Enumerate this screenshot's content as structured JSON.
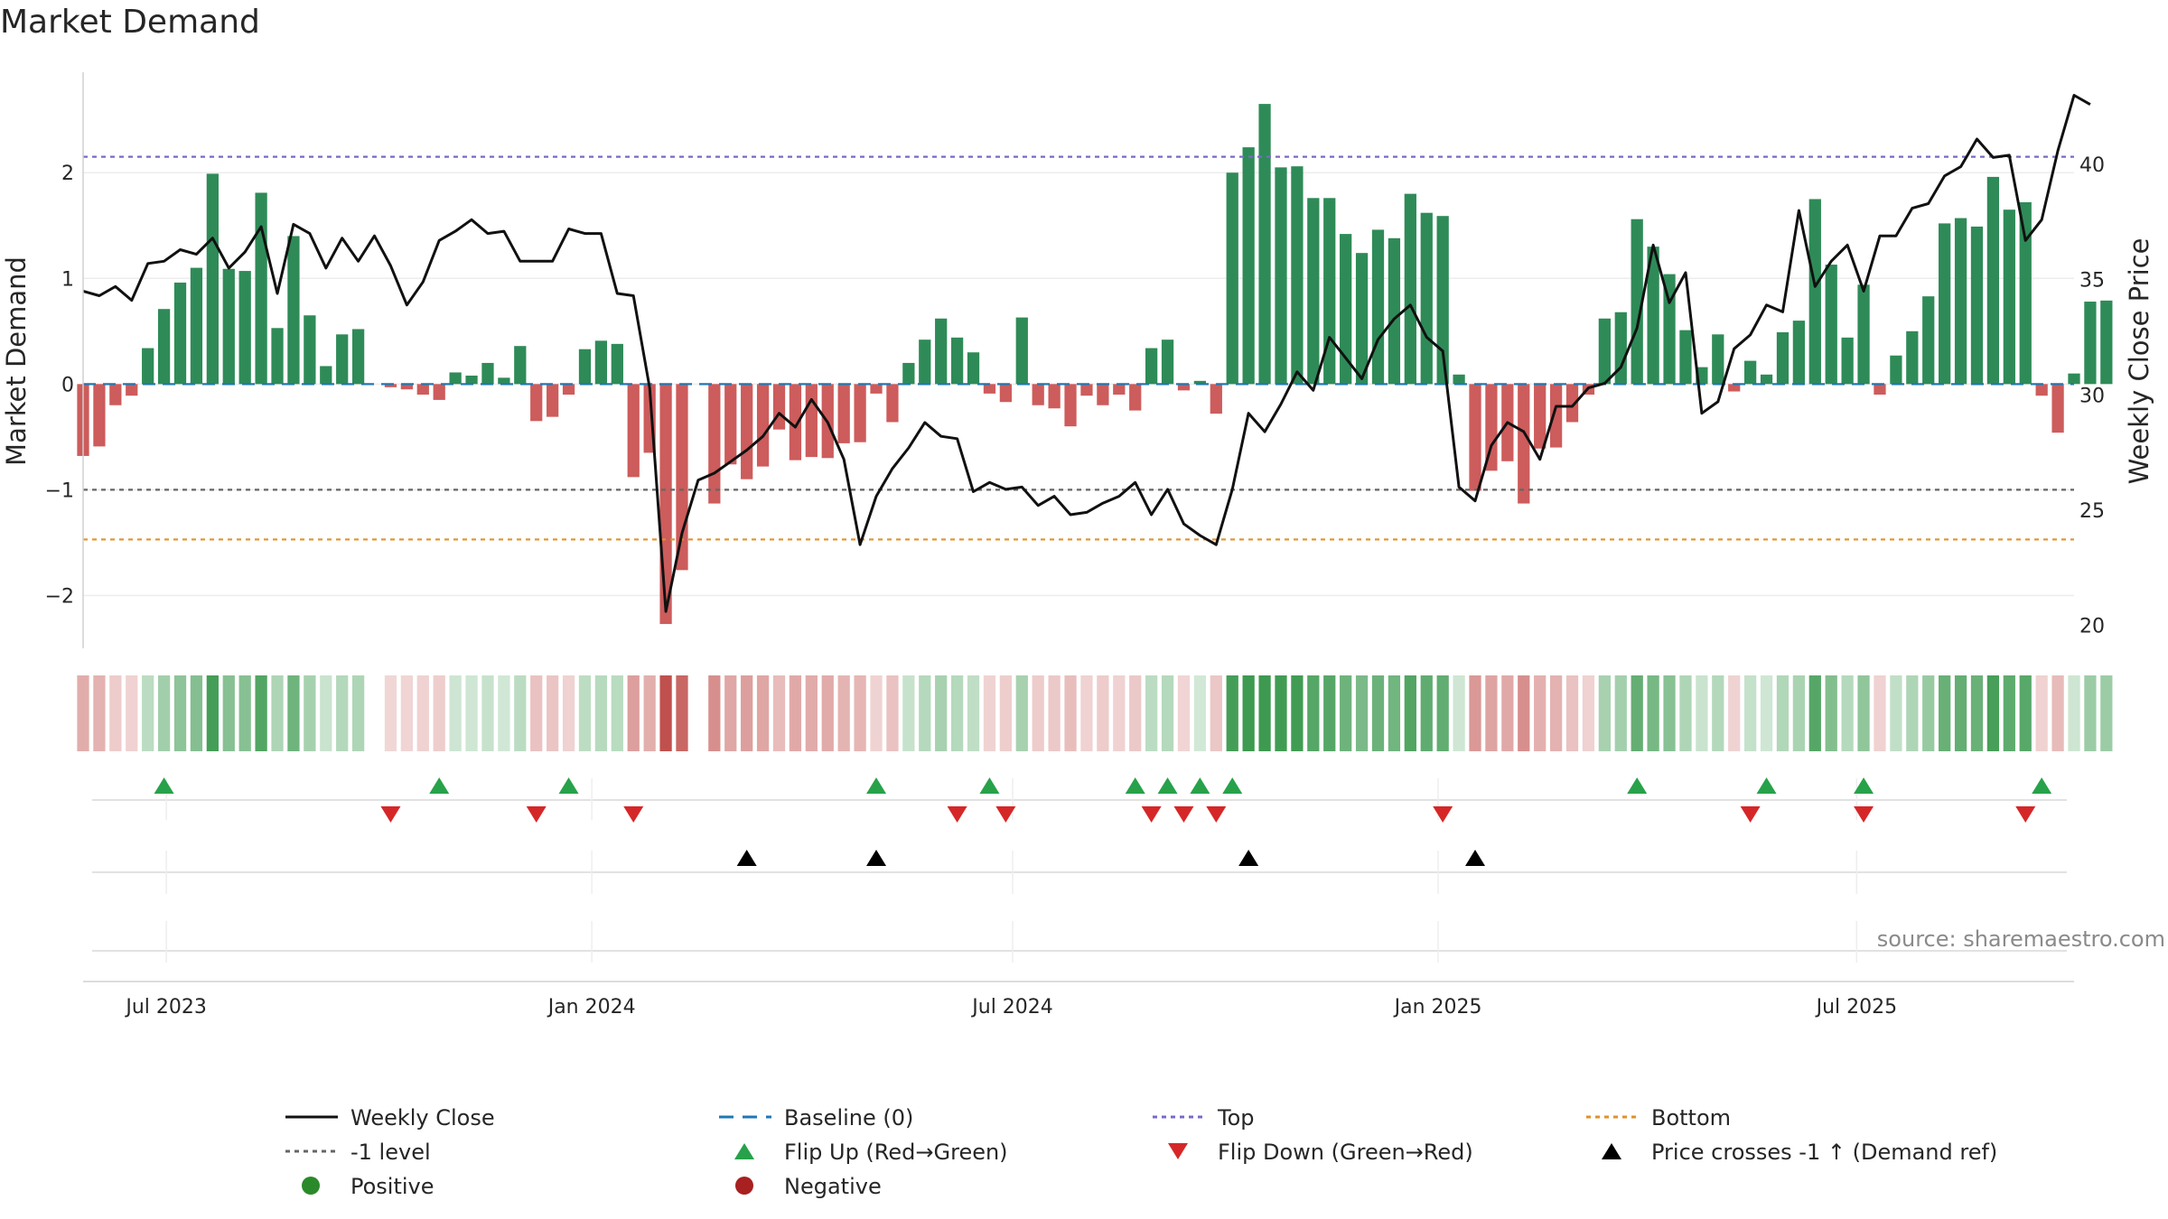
{
  "chart_data": {
    "type": "bar",
    "title": "Market Demand",
    "ylabel": "Market Demand",
    "y2label": "Weekly Close Price",
    "source": "source: sharemaestro.com",
    "ylim": [
      -2.5,
      2.95
    ],
    "y2lim": [
      19.0,
      44.0
    ],
    "yticks": [
      -2,
      -1,
      0,
      1,
      2
    ],
    "ytick_labels": [
      "−2",
      "−1",
      "0",
      "1",
      "2"
    ],
    "y2ticks": [
      20,
      25,
      30,
      35,
      40
    ],
    "y2tick_labels": [
      "20",
      "25",
      "30",
      "35",
      "40"
    ],
    "x_start": "2023-05-26",
    "x_end": "2025-10-03",
    "xticks": [
      {
        "date": "2023-07-01",
        "label": "Jul 2023"
      },
      {
        "date": "2024-01-01",
        "label": "Jan 2024"
      },
      {
        "date": "2024-07-01",
        "label": "Jul 2024"
      },
      {
        "date": "2025-01-01",
        "label": "Jan 2025"
      },
      {
        "date": "2025-07-01",
        "label": "Jul 2025"
      }
    ],
    "reference_lines": [
      {
        "name": "Top",
        "value": 2.15,
        "color": "#7b68c8"
      },
      {
        "name": "-1 level",
        "value": -1.0,
        "color": "#666666"
      },
      {
        "name": "Bottom",
        "value": -1.47,
        "color": "#e0922a"
      },
      {
        "name": "Baseline (0)",
        "value": 0.0,
        "color": "#1f77b4"
      }
    ],
    "series": [
      {
        "name": "Market Demand",
        "start": "2023-05-26",
        "step_days": 7,
        "values": [
          -0.68,
          -0.59,
          -0.2,
          -0.11,
          0.34,
          0.71,
          0.96,
          1.1,
          1.99,
          1.09,
          1.07,
          1.81,
          0.53,
          1.4,
          0.65,
          0.17,
          0.47,
          0.52,
          null,
          -0.03,
          -0.05,
          -0.1,
          -0.15,
          0.11,
          0.08,
          0.2,
          0.06,
          0.36,
          -0.35,
          -0.31,
          -0.1,
          0.33,
          0.41,
          0.38,
          -0.88,
          -0.65,
          -2.27,
          -1.76,
          null,
          -1.13,
          -0.76,
          -0.9,
          -0.78,
          -0.43,
          -0.72,
          -0.69,
          -0.7,
          -0.56,
          -0.55,
          -0.09,
          -0.36,
          0.2,
          0.42,
          0.62,
          0.44,
          0.3,
          -0.09,
          -0.17,
          0.63,
          -0.2,
          -0.23,
          -0.4,
          -0.11,
          -0.2,
          -0.1,
          -0.25,
          0.34,
          0.42,
          -0.06,
          0.03,
          -0.28,
          2.0,
          2.24,
          2.65,
          2.05,
          2.06,
          1.76,
          1.76,
          1.42,
          1.24,
          1.46,
          1.38,
          1.8,
          1.62,
          1.59,
          0.09,
          -1.01,
          -0.82,
          -0.73,
          -1.13,
          -0.61,
          -0.6,
          -0.36,
          -0.1,
          0.62,
          0.68,
          1.56,
          1.3,
          1.04,
          0.51,
          0.16,
          0.47,
          -0.07,
          0.22,
          0.09,
          0.49,
          0.6,
          1.75,
          1.13,
          0.44,
          0.94,
          -0.1,
          0.27,
          0.5,
          0.83,
          1.52,
          1.57,
          1.49,
          1.96,
          1.65,
          1.72,
          -0.11,
          -0.46,
          0.1,
          0.78,
          0.79
        ]
      },
      {
        "name": "Weekly Close",
        "start": "2023-05-26",
        "step_days": 7,
        "values": [
          34.5,
          34.3,
          34.7,
          34.1,
          35.7,
          35.8,
          36.3,
          36.1,
          36.8,
          35.5,
          36.2,
          37.3,
          34.4,
          37.4,
          37.0,
          35.5,
          36.8,
          35.8,
          36.9,
          35.6,
          33.9,
          34.9,
          36.7,
          37.1,
          37.6,
          37.0,
          37.1,
          35.8,
          35.8,
          35.8,
          37.2,
          37.0,
          37.0,
          34.4,
          34.3,
          30.3,
          20.6,
          24.0,
          26.3,
          26.6,
          27.1,
          27.6,
          28.2,
          29.2,
          28.6,
          29.8,
          28.8,
          27.2,
          23.5,
          25.6,
          26.8,
          27.7,
          28.8,
          28.2,
          28.1,
          25.8,
          26.2,
          25.9,
          26.0,
          25.2,
          25.6,
          24.8,
          24.9,
          25.3,
          25.6,
          26.2,
          24.8,
          25.9,
          24.4,
          23.9,
          23.5,
          25.9,
          29.2,
          28.4,
          29.6,
          31.0,
          30.2,
          32.5,
          31.6,
          30.7,
          32.4,
          33.3,
          33.9,
          32.5,
          31.9,
          26.0,
          25.4,
          27.8,
          28.8,
          28.4,
          27.2,
          29.5,
          29.5,
          30.3,
          30.5,
          31.2,
          32.9,
          36.5,
          34.0,
          35.3,
          29.2,
          29.7,
          32.0,
          32.6,
          33.9,
          33.6,
          38.0,
          34.7,
          35.8,
          36.5,
          34.5,
          36.9,
          36.9,
          38.1,
          38.3,
          39.5,
          39.9,
          41.1,
          40.3,
          40.4,
          36.7,
          37.6,
          40.6,
          43.0,
          42.6
        ]
      }
    ],
    "markers": {
      "flip_up": [
        "2023-06-30",
        "2023-10-27",
        "2023-12-22",
        "2024-05-03",
        "2024-06-21",
        "2024-08-23",
        "2024-09-06",
        "2024-09-20",
        "2024-10-04",
        "2025-03-28",
        "2025-05-23",
        "2025-07-04",
        "2025-09-19"
      ],
      "flip_down": [
        "2023-10-06",
        "2023-12-08",
        "2024-01-19",
        "2024-06-07",
        "2024-06-28",
        "2024-08-30",
        "2024-09-13",
        "2024-09-27",
        "2025-01-03",
        "2025-05-16",
        "2025-07-04",
        "2025-09-12"
      ],
      "price_cross": [
        "2024-03-08",
        "2024-05-03",
        "2024-10-11",
        "2025-01-17"
      ]
    },
    "legend": {
      "position": "bottom",
      "items": [
        {
          "label": "Weekly Close",
          "kind": "line",
          "color": "#111111"
        },
        {
          "label": "Baseline (0)",
          "kind": "dash",
          "color": "#1f77b4"
        },
        {
          "label": "Top",
          "kind": "dot",
          "color": "#7b68c8"
        },
        {
          "label": "Bottom",
          "kind": "dot",
          "color": "#e0922a"
        },
        {
          "label": "-1 level",
          "kind": "dot",
          "color": "#666666"
        },
        {
          "label": "Flip Up (Red→Green)",
          "kind": "tri-up",
          "color": "#27a24a"
        },
        {
          "label": "Flip Down (Green→Red)",
          "kind": "tri-down",
          "color": "#d62728"
        },
        {
          "label": "Price crosses -1 ↑ (Demand ref)",
          "kind": "tri-up",
          "color": "#000000"
        },
        {
          "label": "Positive",
          "kind": "circle",
          "color": "#2a8a2a"
        },
        {
          "label": "Negative",
          "kind": "circle",
          "color": "#a82020"
        }
      ]
    },
    "colors": {
      "positive_bar": "#2e8b57",
      "negative_bar": "#cd5c5c",
      "close_line": "#111111",
      "strip_positive": "#3d9a50",
      "strip_negative": "#c0504d"
    }
  }
}
